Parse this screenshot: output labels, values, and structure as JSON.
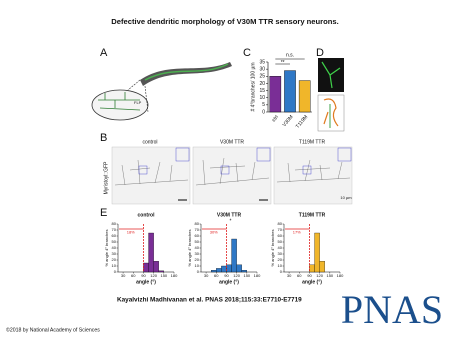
{
  "title": "Defective dendritic morphology of V30M TTR sensory neurons.",
  "citation": "Kayalvizhi Madhivanan et al. PNAS 2018;115:33:E7710-E7719",
  "copyright": "©2018 by National Academy of Sciences",
  "logo": "PNAS",
  "panel_labels": [
    "A",
    "B",
    "C",
    "D",
    "E"
  ],
  "panel_a": {
    "label": "FLP"
  },
  "panel_b": {
    "ylabel": "Myristoyl::GFP",
    "titles": [
      "control",
      "V30M TTR",
      "T119M TTR"
    ],
    "scale": "10 µm"
  },
  "panel_c": {
    "type": "bar",
    "ylabel": "# 4°branches/ 100 µm",
    "categories": [
      "ctrl",
      "V30M",
      "T119M"
    ],
    "values": [
      25,
      29,
      22
    ],
    "colors": [
      "#7a2e96",
      "#2f78c6",
      "#f0b62a"
    ],
    "ylim": [
      0,
      35
    ],
    "yticks": [
      0,
      5,
      10,
      15,
      20,
      25,
      30,
      35
    ],
    "annotations": [
      "n.s.",
      "**"
    ]
  },
  "panel_e": {
    "ylabel": "% angle 4° branches",
    "xlabel": "angle (°)",
    "xlim": [
      15,
      180
    ],
    "xticks": [
      30,
      60,
      90,
      120,
      150,
      180
    ],
    "ylim": [
      0,
      80
    ],
    "yticks": [
      0,
      10,
      20,
      30,
      40,
      50,
      60,
      70,
      80
    ],
    "charts": [
      {
        "type": "histogram",
        "title": "control",
        "color": "#7a2e96",
        "bins": [
          30,
          45,
          60,
          75,
          90,
          105,
          120,
          135,
          150,
          165,
          180
        ],
        "values": [
          0,
          0,
          0,
          0,
          15,
          65,
          18,
          2,
          0,
          0
        ],
        "annotation": "18%",
        "marker": 90
      },
      {
        "type": "histogram",
        "title": "V30M TTR",
        "color": "#2f78c6",
        "bins": [
          30,
          45,
          60,
          75,
          90,
          105,
          120,
          135,
          150,
          165,
          180
        ],
        "values": [
          0,
          3,
          6,
          10,
          12,
          55,
          12,
          3,
          0,
          0
        ],
        "annotation": "30%",
        "marker": 90,
        "star": "*"
      },
      {
        "type": "histogram",
        "title": "T119M TTR",
        "color": "#f0b62a",
        "bins": [
          30,
          45,
          60,
          75,
          90,
          105,
          120,
          135,
          150,
          165,
          180
        ],
        "values": [
          0,
          0,
          0,
          0,
          12,
          65,
          18,
          0,
          0,
          0
        ],
        "annotation": "17%",
        "marker": 90
      }
    ]
  }
}
